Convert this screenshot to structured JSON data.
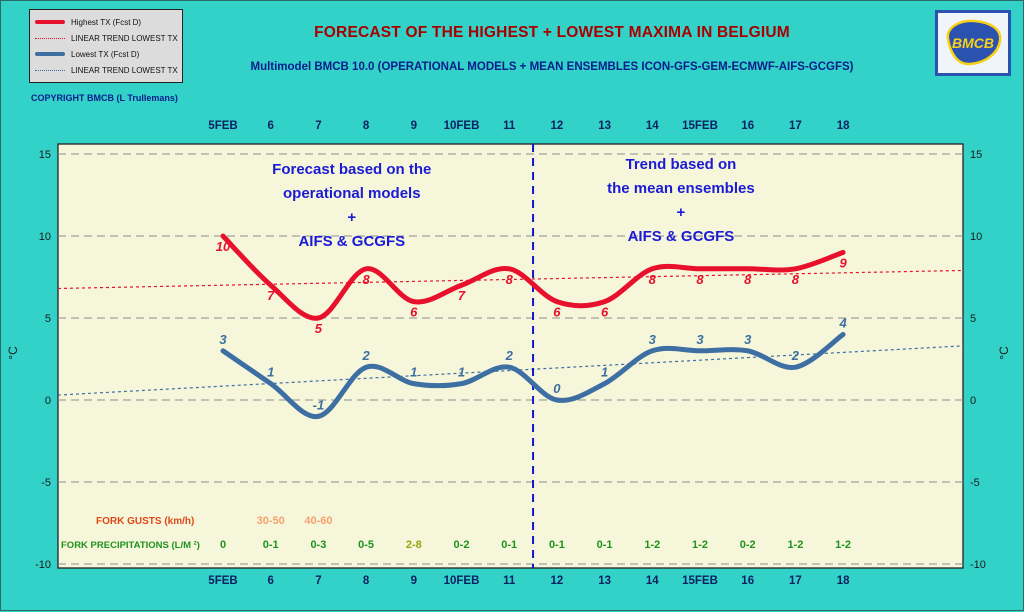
{
  "header": {
    "title": "FORECAST OF THE HIGHEST + LOWEST MAXIMA IN BELGIUM",
    "subtitle": "Multimodel BMCB 10.0 (OPERATIONAL MODELS + MEAN ENSEMBLES  ICON-GFS-GEM-ECMWF-AIFS-GCGFS)",
    "copyright": "COPYRIGHT BMCB (L Trullemans)",
    "logo_text": "BMCB"
  },
  "legend": {
    "items": [
      {
        "label": "Highest TX (Fcst D)",
        "swatch": "red-thick"
      },
      {
        "label": "LINEAR TREND LOWEST  TX",
        "swatch": "red-dotted"
      },
      {
        "label": "Lowest TX (Fcst D)",
        "swatch": "blue-thick"
      },
      {
        "label": "LINEAR TREND LOWEST TX",
        "swatch": "blue-dotted"
      }
    ]
  },
  "chart_data": {
    "type": "line",
    "x_labels": [
      "5FEB",
      "6",
      "7",
      "8",
      "9",
      "10FEB",
      "11",
      "12",
      "13",
      "14",
      "15FEB",
      "16",
      "17",
      "18"
    ],
    "y_ticks": [
      15,
      10,
      5,
      0,
      -5,
      -10
    ],
    "ylim": [
      -10,
      15
    ],
    "ylabel_left": "°C",
    "ylabel_right": "°C",
    "grid": "horizontal-dashed",
    "series": [
      {
        "name": "Highest TX (Fcst D)",
        "color": "#E8112D",
        "values": [
          10,
          7,
          5,
          8,
          6,
          7,
          8,
          6,
          6,
          8,
          8,
          8,
          8,
          9
        ],
        "label_side": "below"
      },
      {
        "name": "Lowest TX (Fcst D)",
        "color": "#3E6FA3",
        "values": [
          3,
          1,
          -1,
          2,
          1,
          1,
          2,
          0,
          1,
          3,
          3,
          3,
          2,
          4
        ],
        "label_side": "above"
      }
    ],
    "trend_lines": [
      {
        "name": "linear-trend-highest-tx",
        "color": "#E8112D",
        "start_value": 6.8,
        "end_value": 7.9
      },
      {
        "name": "linear-trend-lowest-tx",
        "color": "#3E6FA3",
        "start_value": 0.3,
        "end_value": 3.3
      }
    ],
    "divider_between_indices": [
      6,
      7
    ],
    "divider_color": "#1414D0",
    "annotations": [
      {
        "lines": [
          "Forecast based on the",
          "operational models",
          "+",
          "AIFS & GCGFS"
        ],
        "center_day_index": 2.7,
        "top_y": 173,
        "color": "#1B1BD6"
      },
      {
        "lines": [
          "Trend based on",
          "the mean ensembles",
          "+",
          "AIFS & GCGFS"
        ],
        "center_day_index": 9.6,
        "top_y": 168,
        "color": "#1B1BD6"
      }
    ],
    "fork_gusts": {
      "label": "FORK GUSTS (km/h)",
      "label_color": "#E0481A",
      "value_color": "#F5A26F",
      "values": [
        "",
        "30-50",
        "40-60",
        "",
        "",
        "",
        "",
        "",
        "",
        "",
        "",
        "",
        "",
        ""
      ]
    },
    "fork_precipitations": {
      "label": "FORK PRECIPITATIONS (L/M ²)",
      "label_color": "#1E921E",
      "value_color": "#1E921E",
      "emphasis_index": 4,
      "emphasis_color": "#9AA10F",
      "values": [
        "0",
        "0-1",
        "0-3",
        "0-5",
        "2-8",
        "0-2",
        "0-1",
        "0-1",
        "0-1",
        "1-2",
        "1-2",
        "0-2",
        "1-2",
        "1-2"
      ]
    }
  }
}
